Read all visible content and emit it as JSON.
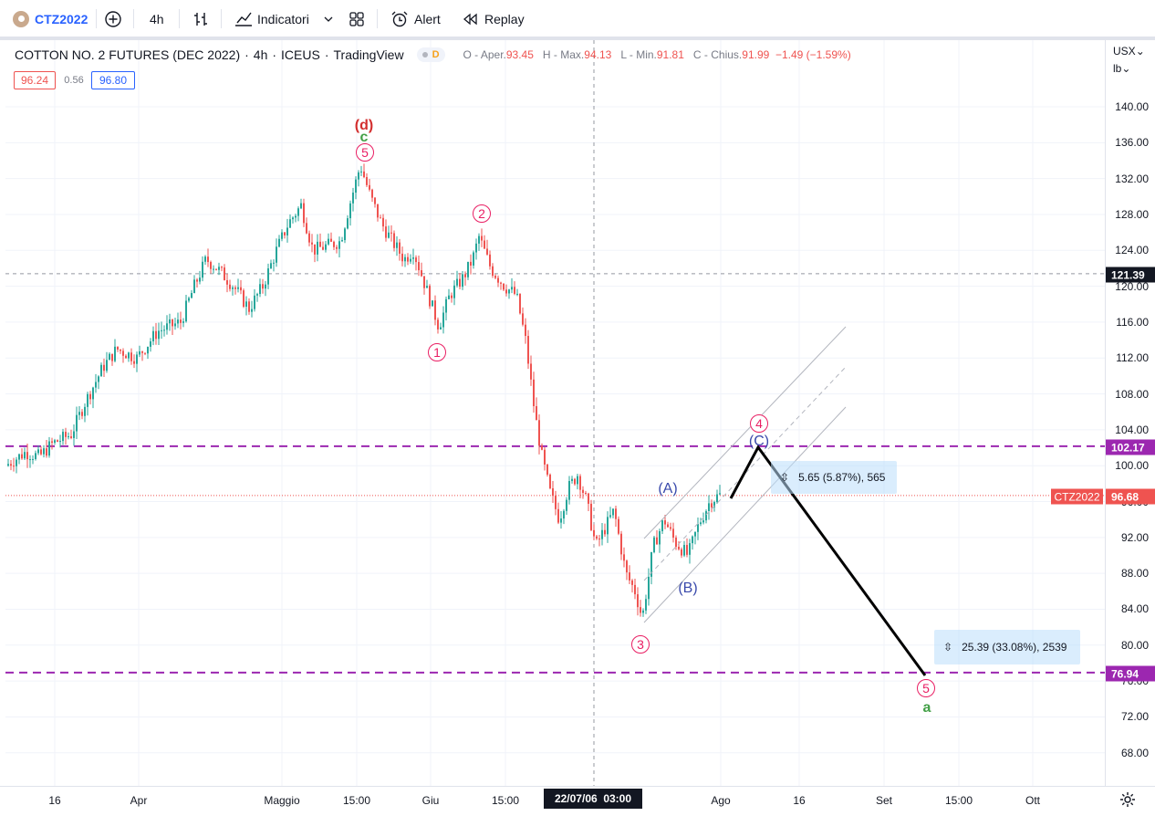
{
  "toolbar": {
    "symbol": "CTZ2022",
    "interval": "4h",
    "indicators_label": "Indicatori",
    "alert_label": "Alert",
    "replay_label": "Replay"
  },
  "legend": {
    "title": "COTTON NO. 2 FUTURES (DEC 2022)",
    "interval": "4h",
    "exchange": "ICEUS",
    "source": "TradingView",
    "badge": "D",
    "o_label": "O - Aper.",
    "o_value": "93.45",
    "h_label": "H - Max.",
    "h_value": "94.13",
    "l_label": "L - Min.",
    "l_value": "91.81",
    "c_label": "C - Chius.",
    "c_value": "91.99",
    "change": "−1.49 (−1.59%)"
  },
  "quote": {
    "bid": "96.24",
    "spread": "0.56",
    "ask": "96.80"
  },
  "price_axis": {
    "currency": "USX",
    "unit": "lb",
    "ticks": [
      "140.00",
      "136.00",
      "132.00",
      "128.00",
      "124.00",
      "120.00",
      "116.00",
      "112.00",
      "108.00",
      "104.00",
      "100.00",
      "96.00",
      "92.00",
      "88.00",
      "84.00",
      "80.00",
      "76.00",
      "72.00",
      "68.00"
    ],
    "crosshair_price": "121.39",
    "level_high": "102.17",
    "level_low": "76.94",
    "last_price": "96.68",
    "last_symbol": "CTZ2022"
  },
  "time_axis": {
    "ticks": [
      "16",
      "Apr",
      "Maggio",
      "15:00",
      "Giu",
      "15:00",
      "Ago",
      "16",
      "Set",
      "15:00",
      "Ott"
    ],
    "crosshair_time": "22/07/06  03:00"
  },
  "waves": {
    "d_label": "(d)",
    "c_label": "c",
    "w5_top": "5",
    "w2": "2",
    "w1": "1",
    "w3": "3",
    "w4": "4",
    "A": "(A)",
    "B": "(B)",
    "C": "(C)",
    "w5_target": "5",
    "a_label": "a"
  },
  "measures": {
    "small": "5.65 (5.87%), 565",
    "large": "25.39 (33.08%), 2539"
  },
  "colors": {
    "up": "#26a69a",
    "down": "#ef5350",
    "purple": "#9c27b0",
    "pink": "#e91e63",
    "blue": "#3949ab"
  }
}
